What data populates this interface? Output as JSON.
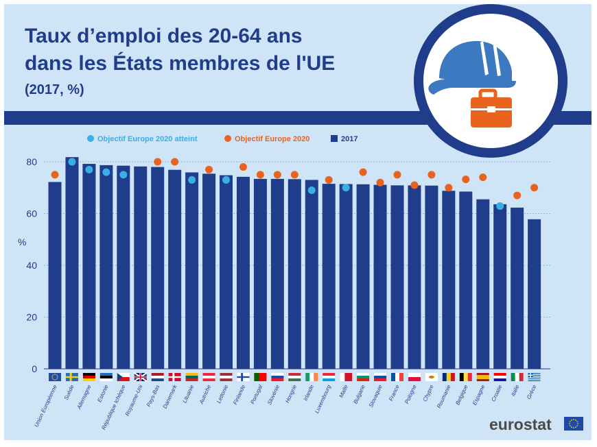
{
  "header": {
    "title_line1": "Taux d’emploi des 20-64 ans",
    "title_line2": "dans les États membres de l'UE",
    "subtitle": "(2017, %)"
  },
  "brand": {
    "name": "eurostat"
  },
  "colors": {
    "background": "#cfe4f7",
    "band": "#1f3d8a",
    "bar": "#1f3d8a",
    "target": "#e8641e",
    "achieved": "#3aaee6",
    "helmet": "#3d79c0",
    "briefcase": "#e8641e"
  },
  "icons": [
    "hard-hat-icon",
    "briefcase-icon",
    "eu-flag-icon"
  ],
  "chart_data": {
    "type": "bar",
    "ylabel": "%",
    "ylim": [
      0,
      82
    ],
    "yticks": [
      0,
      20,
      40,
      60,
      80
    ],
    "grid": true,
    "legend_placement": "top-left",
    "legend": {
      "achieved": "Objectif Europe 2020 atteint",
      "target": "Objectif Europe 2020",
      "bar": "2017"
    },
    "categories": [
      "Union Européenne",
      "Suède",
      "Allemagne",
      "Estonie",
      "République tchèque",
      "Royaume-Uni",
      "Pays-Bas",
      "Danemark",
      "Lituanie",
      "Autriche",
      "Lettonie",
      "Finlande",
      "Portugal",
      "Slovénie",
      "Hongrie",
      "Irlande",
      "Luxembourg",
      "Malte",
      "Bulgarie",
      "Slovaquie",
      "France",
      "Pologne",
      "Chypre",
      "Roumanie",
      "Belgique",
      "Espagne",
      "Croatie",
      "Italie",
      "Grèce"
    ],
    "values": [
      72.2,
      81.8,
      79.2,
      78.7,
      78.5,
      78.2,
      78.0,
      76.9,
      75.9,
      75.4,
      74.8,
      74.2,
      73.4,
      73.4,
      73.3,
      73.0,
      71.5,
      71.4,
      71.3,
      71.1,
      70.9,
      70.9,
      70.8,
      68.8,
      68.5,
      65.5,
      63.6,
      62.3,
      57.8
    ],
    "targets": [
      75,
      80,
      77,
      76,
      75,
      null,
      80,
      80,
      73,
      77,
      73,
      78,
      75,
      75,
      75,
      69,
      73,
      70,
      76,
      72,
      75,
      71,
      75,
      70,
      73.2,
      74,
      62.9,
      67,
      70
    ],
    "achieved": [
      false,
      true,
      true,
      true,
      true,
      null,
      false,
      false,
      true,
      false,
      true,
      false,
      false,
      false,
      false,
      true,
      false,
      true,
      false,
      false,
      false,
      false,
      false,
      false,
      false,
      false,
      true,
      false,
      false
    ]
  }
}
